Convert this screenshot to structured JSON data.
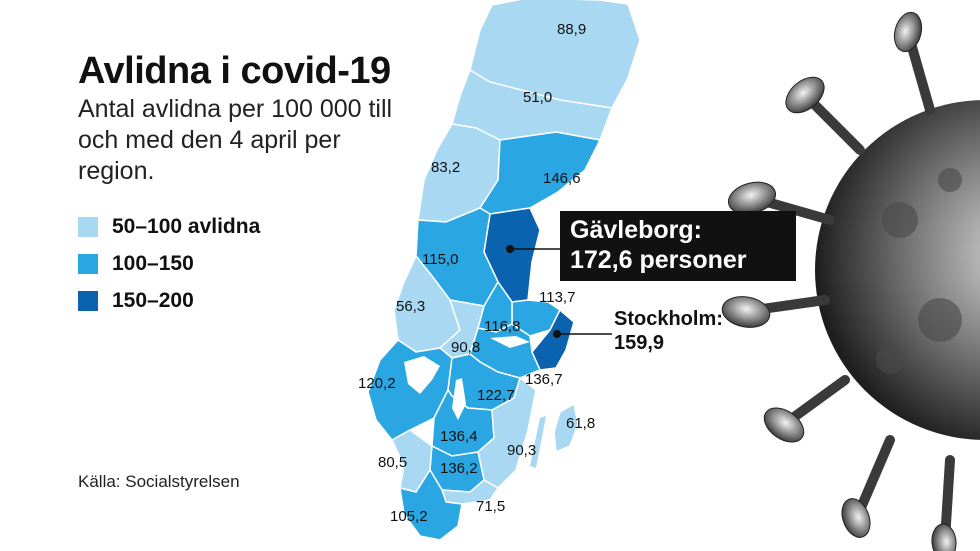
{
  "title": "Avlidna i covid-19",
  "subtitle": "Antal avlidna per 100 000 till och med den 4 april per region.",
  "legend": [
    {
      "label": "50–100 avlidna",
      "color": "#a8d8f2"
    },
    {
      "label": "100–150",
      "color": "#2aa7e2"
    },
    {
      "label": "150–200",
      "color": "#0b63b0"
    }
  ],
  "source": "Källa: Socialstyrelsen",
  "callout_gavleborg": {
    "name": "Gävleborg:",
    "value": "172,6 personer"
  },
  "callout_stockholm": {
    "name": "Stockholm:",
    "value": "159,9"
  },
  "region_values": {
    "norrbotten": "88,9",
    "vasterbotten": "51,0",
    "jamtland": "83,2",
    "vasternorrland": "146,6",
    "dalarna": "115,0",
    "uppsala": "113,7",
    "varmland": "56,3",
    "vastmanland": "116,8",
    "orebro": "90,8",
    "sodermanland": "136,7",
    "vastra_gotaland": "120,2",
    "ostergotland": "122,7",
    "jonkoping": "136,4",
    "kalmar": "90,3",
    "gotland": "61,8",
    "halland": "80,5",
    "kronoberg": "136,2",
    "blekinge": "71,5",
    "skane": "105,2"
  }
}
